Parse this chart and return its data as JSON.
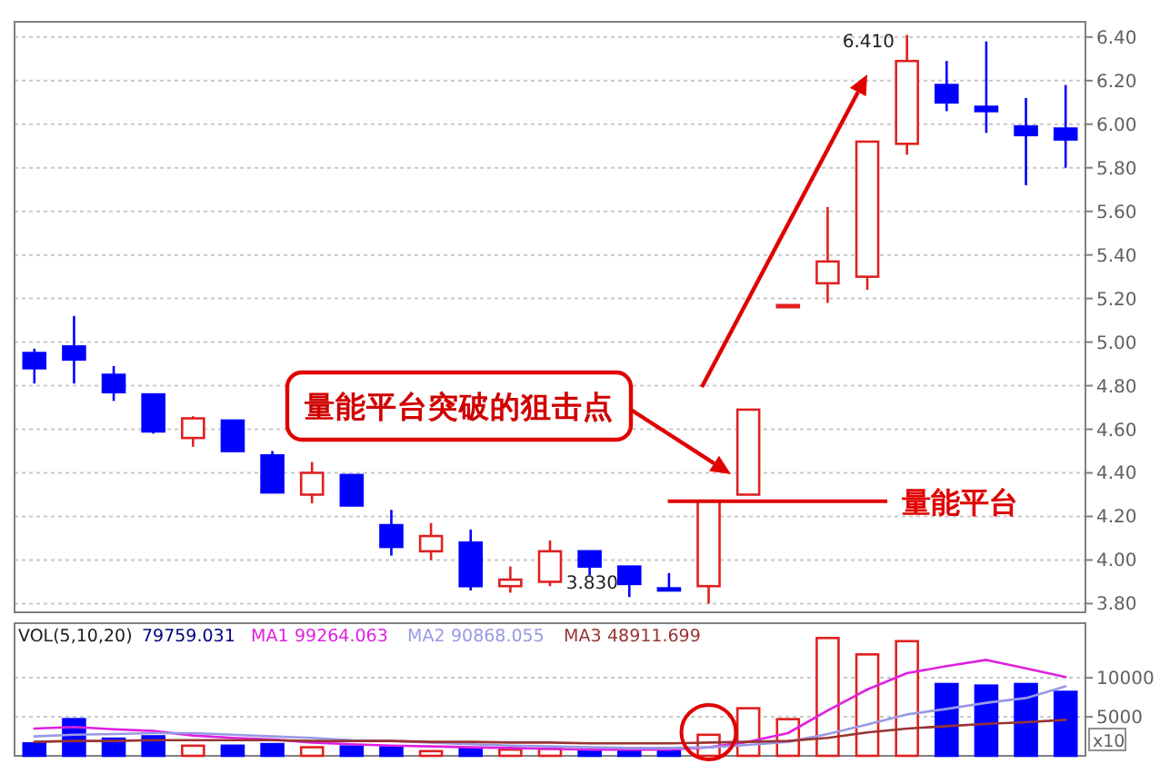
{
  "chart_data": [
    {
      "type": "candlestick",
      "categories": [
        null,
        null,
        null,
        null,
        null,
        null,
        null,
        null,
        null,
        null,
        null,
        null,
        null,
        null,
        null,
        null,
        null,
        null,
        null,
        null,
        null,
        null,
        null,
        null,
        null,
        null,
        null
      ],
      "ohlc": [
        [
          4.95,
          4.97,
          4.81,
          4.88
        ],
        [
          4.98,
          5.12,
          4.81,
          4.92
        ],
        [
          4.85,
          4.89,
          4.73,
          4.77
        ],
        [
          4.76,
          4.76,
          4.58,
          4.59
        ],
        [
          4.56,
          4.66,
          4.52,
          4.65
        ],
        [
          4.64,
          4.64,
          4.5,
          4.5
        ],
        [
          4.48,
          4.5,
          4.31,
          4.31
        ],
        [
          4.3,
          4.45,
          4.26,
          4.4
        ],
        [
          4.39,
          4.39,
          4.25,
          4.25
        ],
        [
          4.16,
          4.23,
          4.02,
          4.06
        ],
        [
          4.04,
          4.17,
          4.0,
          4.11
        ],
        [
          4.08,
          4.14,
          3.86,
          3.88
        ],
        [
          3.88,
          3.97,
          3.85,
          3.91
        ],
        [
          3.9,
          4.09,
          3.88,
          4.04
        ],
        [
          4.04,
          4.04,
          3.93,
          3.97
        ],
        [
          3.97,
          3.97,
          3.83,
          3.89
        ],
        [
          3.87,
          3.94,
          3.86,
          3.86
        ],
        [
          3.88,
          4.27,
          3.8,
          4.27
        ],
        [
          4.3,
          4.69,
          4.3,
          4.69
        ],
        [
          5.16,
          5.17,
          5.16,
          5.17
        ],
        [
          5.27,
          5.62,
          5.18,
          5.37
        ],
        [
          5.3,
          5.92,
          5.24,
          5.92
        ],
        [
          5.91,
          6.41,
          5.86,
          6.29
        ],
        [
          6.18,
          6.29,
          6.06,
          6.1
        ],
        [
          6.08,
          6.38,
          5.96,
          6.06
        ],
        [
          5.99,
          6.12,
          5.72,
          5.95
        ],
        [
          5.98,
          6.18,
          5.8,
          5.93
        ]
      ],
      "colors": [
        "#0000ff",
        "#0000ff",
        "#0000ff",
        "#0000ff",
        "#e02020",
        "#0000ff",
        "#0000ff",
        "#e02020",
        "#0000ff",
        "#0000ff",
        "#e02020",
        "#0000ff",
        "#e02020",
        "#e02020",
        "#0000ff",
        "#0000ff",
        "#0000ff",
        "#e02020",
        "#e02020",
        "#e02020",
        "#e02020",
        "#e02020",
        "#e02020",
        "#0000ff",
        "#0000ff",
        "#0000ff",
        "#0000ff"
      ],
      "ylim": [
        3.76,
        6.47
      ],
      "yticks": [
        {
          "value": 3.8,
          "label": "3.80"
        },
        {
          "value": 4.0,
          "label": "4.00"
        },
        {
          "value": 4.2,
          "label": "4.20"
        },
        {
          "value": 4.4,
          "label": "4.40"
        },
        {
          "value": 4.6,
          "label": "4.60"
        },
        {
          "value": 4.8,
          "label": "4.80"
        },
        {
          "value": 5.0,
          "label": "5.00"
        },
        {
          "value": 5.2,
          "label": "5.20"
        },
        {
          "value": 5.4,
          "label": "5.40"
        },
        {
          "value": 5.6,
          "label": "5.60"
        },
        {
          "value": 5.8,
          "label": "5.80"
        },
        {
          "value": 6.0,
          "label": "6.00"
        },
        {
          "value": 6.2,
          "label": "6.20"
        },
        {
          "value": 6.4,
          "label": "6.40"
        }
      ],
      "tick_labels": "y",
      "grid": "y",
      "ref_lines": [
        {
          "axis": "y",
          "value": 4.27,
          "label": "量能平台",
          "color": "#e00000"
        }
      ],
      "annotations": [
        "3.830",
        "6.410",
        "量能平台突破的狙击点"
      ]
    },
    {
      "type": "bar",
      "title": "VOL(5,10,20)",
      "categories": [
        null,
        null,
        null,
        null,
        null,
        null,
        null,
        null,
        null,
        null,
        null,
        null,
        null,
        null,
        null,
        null,
        null,
        null,
        null,
        null,
        null,
        null,
        null,
        null,
        null,
        null,
        null
      ],
      "series": [
        {
          "type": "bar",
          "values": [
            1600,
            4700,
            2200,
            2500,
            1300,
            1300,
            1500,
            1100,
            1200,
            1100,
            600,
            1000,
            800,
            900,
            800,
            600,
            600,
            2700,
            6100,
            4700,
            15100,
            13000,
            14700,
            9200,
            9000,
            9200,
            8200
          ],
          "colors": [
            "#0000ff",
            "#0000ff",
            "#0000ff",
            "#0000ff",
            "#e02020",
            "#0000ff",
            "#0000ff",
            "#e02020",
            "#0000ff",
            "#0000ff",
            "#e02020",
            "#0000ff",
            "#e02020",
            "#e02020",
            "#0000ff",
            "#0000ff",
            "#0000ff",
            "#e02020",
            "#e02020",
            "#e02020",
            "#e02020",
            "#e02020",
            "#e02020",
            "#0000ff",
            "#0000ff",
            "#0000ff",
            "#0000ff"
          ]
        },
        {
          "type": "line",
          "name": "MA1",
          "color": "#e020e0",
          "values": [
            3500,
            3700,
            3400,
            3200,
            2600,
            2300,
            2100,
            1700,
            1500,
            1300,
            1200,
            1100,
            1000,
            900,
            800,
            800,
            800,
            1100,
            1800,
            2900,
            5800,
            8500,
            10600,
            11500,
            12300,
            11200,
            10100
          ]
        },
        {
          "type": "line",
          "name": "MA2",
          "color": "#9999e6",
          "values": [
            2500,
            2700,
            2800,
            2900,
            2900,
            2700,
            2500,
            2300,
            2000,
            1900,
            1700,
            1500,
            1300,
            1200,
            1100,
            1000,
            1000,
            1100,
            1400,
            1800,
            2800,
            4000,
            5300,
            6000,
            6800,
            7400,
            8900
          ]
        },
        {
          "type": "line",
          "name": "MA3",
          "color": "#993333",
          "values": [
            1800,
            1900,
            1900,
            2000,
            2000,
            2000,
            2000,
            1900,
            1900,
            1900,
            1800,
            1800,
            1700,
            1700,
            1600,
            1600,
            1600,
            1700,
            1800,
            1900,
            2300,
            3000,
            3500,
            3800,
            4100,
            4300,
            4600
          ]
        }
      ],
      "ylim": [
        0,
        17000
      ],
      "yticks": [
        5000,
        10000
      ],
      "tick_labels": "y",
      "grid": "y",
      "legend": "top left",
      "annotations": [
        "79759.031",
        "99264.063",
        "90868.055",
        "48911.699",
        "x10"
      ]
    }
  ]
}
